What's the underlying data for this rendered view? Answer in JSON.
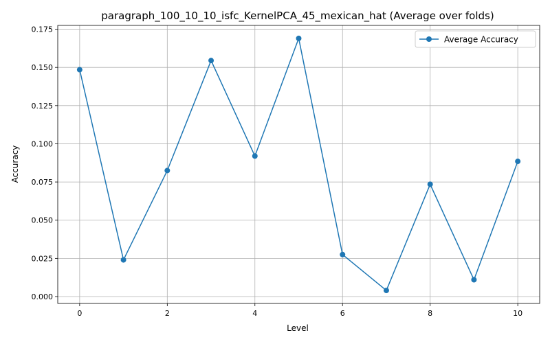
{
  "chart_data": {
    "type": "line",
    "title": "paragraph_100_10_10_isfc_KernelPCA_45_mexican_hat (Average over folds)",
    "xlabel": "Level",
    "ylabel": "Accuracy",
    "x": [
      0,
      1,
      2,
      3,
      4,
      5,
      6,
      7,
      8,
      9,
      10
    ],
    "series": [
      {
        "name": "Average Accuracy",
        "values": [
          0.1485,
          0.024,
          0.0825,
          0.1545,
          0.092,
          0.169,
          0.0275,
          0.004,
          0.0735,
          0.011,
          0.0885
        ]
      }
    ],
    "xlim": [
      -0.5,
      10.5
    ],
    "ylim": [
      -0.0045,
      0.1775
    ],
    "xticks": [
      0,
      2,
      4,
      6,
      8,
      10
    ],
    "xtick_labels": [
      "0",
      "2",
      "4",
      "6",
      "8",
      "10"
    ],
    "yticks": [
      0,
      0.025,
      0.05,
      0.075,
      0.1,
      0.125,
      0.15,
      0.175
    ],
    "ytick_labels": [
      "0.000",
      "0.025",
      "0.050",
      "0.075",
      "0.100",
      "0.125",
      "0.150",
      "0.175"
    ],
    "grid": true,
    "legend_position": "top-right",
    "line_color": "#1f77b4",
    "marker": "circle"
  }
}
